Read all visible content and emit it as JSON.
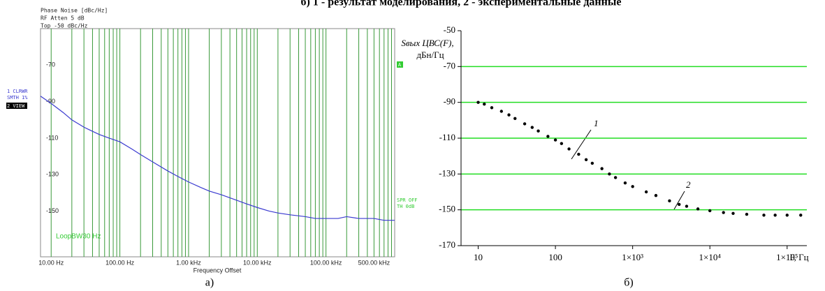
{
  "caption_top": "б) 1 - результат моделирования, 2 - экспериментальные данные",
  "chart_data": [
    {
      "type": "line",
      "log_x": true,
      "header_lines": [
        "Phase Noise [dBc/Hz]",
        "RF Atten      5 dB",
        "Top -50 dBc/Hz"
      ],
      "trace_labels": [
        "1 CLRWR",
        "SMTH 1%",
        "2 VIEW"
      ],
      "marker_label": "A",
      "right_labels": [
        "SPR OFF",
        "TH 0dB"
      ],
      "annotation": "LoopBW30 Hz",
      "xlabel": "Frequency Offset",
      "panel_label": "а)",
      "xlim": [
        7,
        1000000
      ],
      "ylim": [
        -50,
        -175
      ],
      "xticks": [
        {
          "value": 10,
          "label": "10.00 Hz"
        },
        {
          "value": 100,
          "label": "100.00 Hz"
        },
        {
          "value": 1000,
          "label": "1.00 kHz"
        },
        {
          "value": 10000,
          "label": "10.00 kHz"
        },
        {
          "value": 100000,
          "label": "100.00 kHz"
        },
        {
          "value": 500000,
          "label": "500.00 kHz"
        }
      ],
      "minor_xticks": [
        20,
        30,
        40,
        50,
        60,
        70,
        80,
        90,
        200,
        300,
        400,
        500,
        600,
        700,
        800,
        900,
        2000,
        3000,
        4000,
        5000,
        6000,
        7000,
        8000,
        9000,
        20000,
        30000,
        40000,
        50000,
        60000,
        70000,
        80000,
        90000,
        200000,
        300000,
        400000,
        600000,
        700000,
        800000,
        900000
      ],
      "yticks": [
        -70,
        -90,
        -110,
        -130,
        -150
      ],
      "grid_color": "#3a9a3a",
      "series": [
        {
          "color": "#3a3ad0",
          "x": [
            7,
            10,
            15,
            20,
            30,
            50,
            70,
            100,
            150,
            200,
            300,
            500,
            700,
            1000,
            1500,
            2000,
            3000,
            5000,
            7000,
            10000,
            15000,
            20000,
            30000,
            50000,
            70000,
            100000,
            150000,
            200000,
            300000,
            500000,
            700000,
            1000000
          ],
          "values": [
            -87,
            -91,
            -96,
            -100,
            -104,
            -108,
            -110,
            -112,
            -116,
            -119,
            -123,
            -128,
            -131,
            -134,
            -137,
            -139,
            -141,
            -144,
            -146,
            -148,
            -150,
            -151,
            -152,
            -153,
            -154,
            -154,
            -154,
            -153,
            -154,
            -154,
            -155,
            -155
          ]
        }
      ]
    },
    {
      "type": "scatter",
      "log_x": true,
      "ylabel": "Sвых ЦВС(F),",
      "yunit": "дБн/Гц",
      "xlabel": "F, Гц",
      "point_labels": [
        "1",
        "2"
      ],
      "panel_label": "б)",
      "xlim": [
        6,
        180000
      ],
      "ylim": [
        -50,
        -170
      ],
      "xticks": [
        10,
        100,
        {
          "value": 1000,
          "label": "1×10³"
        },
        {
          "value": 10000,
          "label": "1×10⁴"
        },
        {
          "value": 100000,
          "label": "1×10⁵"
        }
      ],
      "yticks": [
        -50,
        -70,
        -90,
        -110,
        -130,
        -150,
        -170
      ],
      "ygrid": [
        -70,
        -90,
        -110,
        -130,
        -150
      ],
      "grid_color": "#22dd22",
      "series": [
        {
          "color": "#000000",
          "x": [
            10,
            12,
            15,
            20,
            25,
            30,
            40,
            50,
            60,
            80,
            100,
            120,
            150,
            200,
            250,
            300,
            400,
            500,
            600,
            800,
            1000,
            1500,
            2000,
            3000,
            4000,
            5000,
            7000,
            10000,
            15000,
            20000,
            30000,
            50000,
            70000,
            100000,
            150000
          ],
          "values": [
            -90,
            -91,
            -93,
            -95,
            -97,
            -99,
            -102,
            -104,
            -106,
            -109,
            -111,
            -113,
            -116,
            -119,
            -122,
            -124,
            -127,
            -130,
            -132,
            -135,
            -137,
            -140,
            -142,
            -145,
            -147,
            -148,
            -149.5,
            -150.5,
            -151.5,
            -152,
            -152.5,
            -153,
            -153,
            -153,
            -153
          ]
        }
      ]
    }
  ]
}
